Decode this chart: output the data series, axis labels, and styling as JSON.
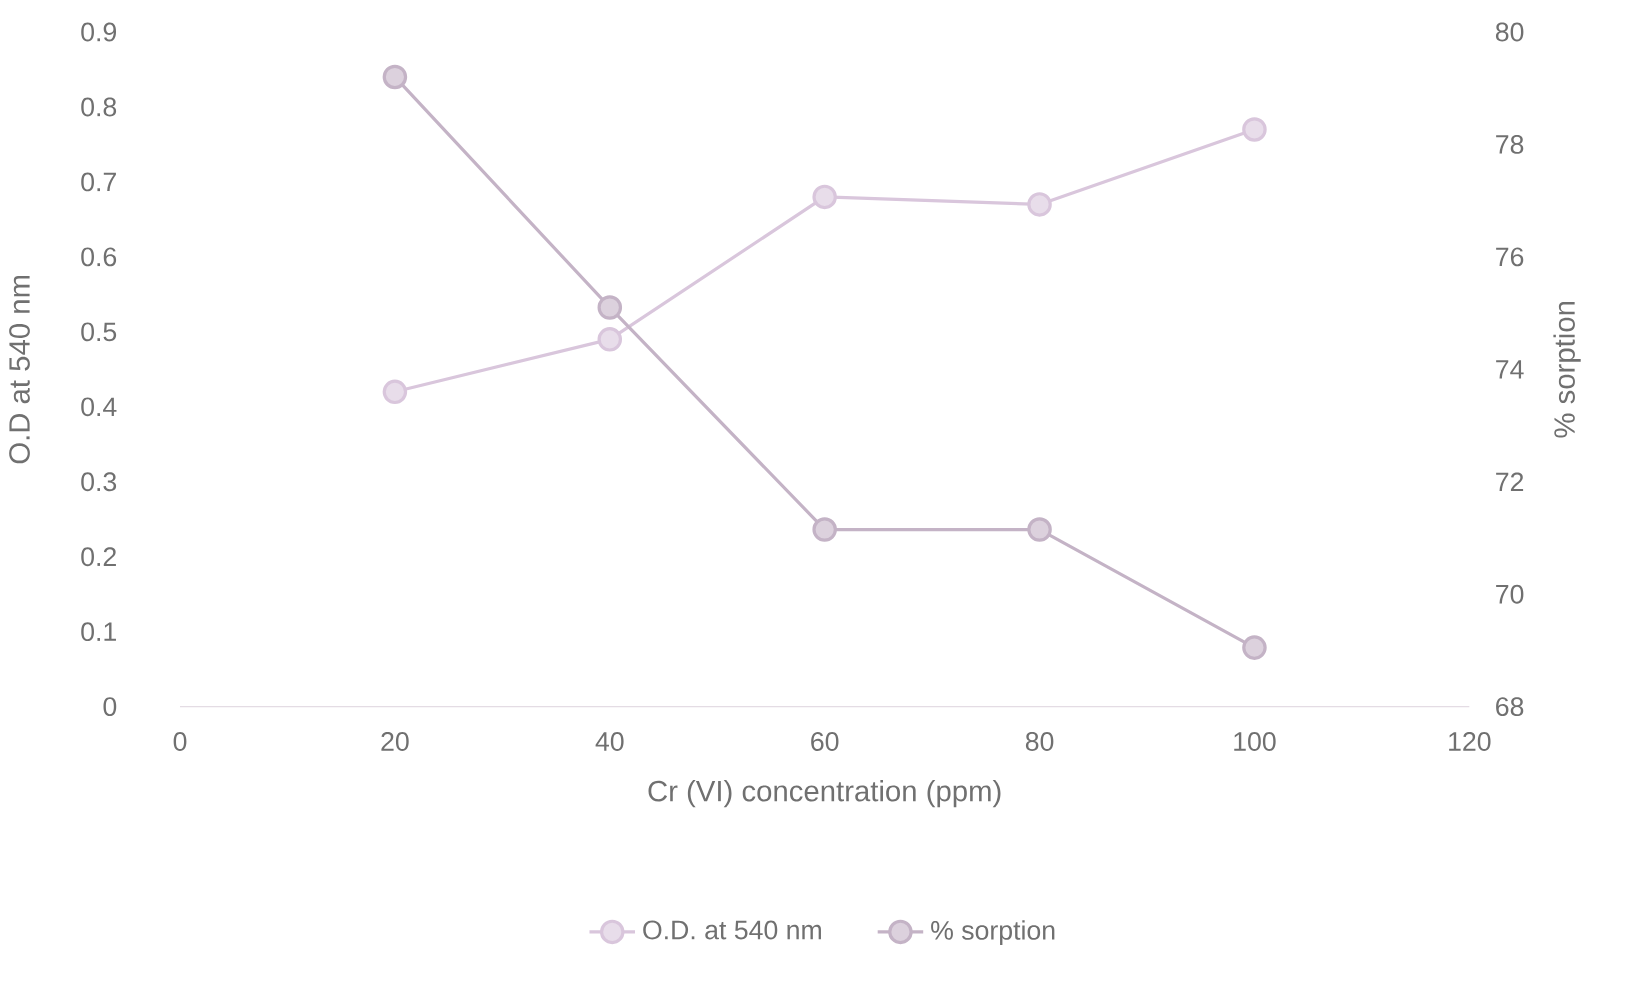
{
  "chart_data": {
    "type": "line",
    "xlabel": "Cr (VI) concentration (ppm)",
    "ylabel": "O.D at 540 nm",
    "y2label": "% sorption",
    "x": [
      20,
      40,
      60,
      80,
      100
    ],
    "series": [
      {
        "name": "O.D. at 540 nm",
        "color": "#d9c6dc",
        "values": [
          0.42,
          0.49,
          0.68,
          0.67,
          0.77
        ]
      },
      {
        "name": "% sorption",
        "color": "#c4b3c6",
        "axis": "y2",
        "values": [
          79.2,
          75.1,
          71.15,
          71.15,
          69.05
        ]
      }
    ],
    "xlim": [
      0,
      120
    ],
    "xticks": [
      0,
      20,
      40,
      60,
      80,
      100,
      120
    ],
    "ylim": [
      0,
      0.9
    ],
    "yticks": [
      0,
      0.1,
      0.2,
      0.3,
      0.4,
      0.5,
      0.6,
      0.7,
      0.8,
      0.9
    ],
    "y2lim": [
      68,
      80
    ],
    "y2ticks": [
      68,
      70,
      72,
      74,
      76,
      78,
      80
    ],
    "legend": "bottom",
    "marker": "circle"
  }
}
